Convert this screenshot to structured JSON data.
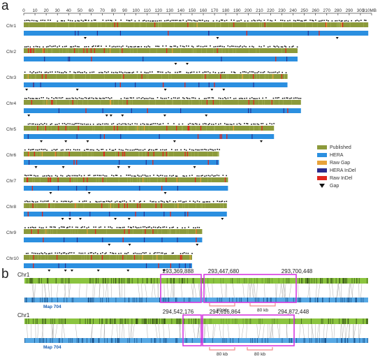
{
  "panel_labels": {
    "a": "a",
    "b": "b"
  },
  "axis": {
    "ticks": [
      "0",
      "10",
      "20",
      "30",
      "40",
      "50",
      "60",
      "70",
      "80",
      "90",
      "100",
      "110",
      "120",
      "130",
      "140",
      "150",
      "160",
      "170",
      "180",
      "190",
      "200",
      "210",
      "220",
      "230",
      "240",
      "250",
      "260",
      "270",
      "280",
      "290",
      "300",
      "310MB"
    ],
    "max_mb": 310
  },
  "colors": {
    "published": "#8c9a3b",
    "hera": "#2b8fe0",
    "raw_gap": "#e8a23a",
    "hera_indel": "#2a2a8c",
    "raw_indel": "#e0261e",
    "gap": "#111111"
  },
  "chromosomes": [
    {
      "name": "Chr1",
      "length_mb": 307
    },
    {
      "name": "Chr2",
      "length_mb": 244
    },
    {
      "name": "Chr3",
      "length_mb": 235
    },
    {
      "name": "Chr4",
      "length_mb": 247
    },
    {
      "name": "Chr5",
      "length_mb": 223
    },
    {
      "name": "Chr6",
      "length_mb": 174
    },
    {
      "name": "Chr7",
      "length_mb": 182
    },
    {
      "name": "Chr8",
      "length_mb": 181
    },
    {
      "name": "Chr9",
      "length_mb": 159
    },
    {
      "name": "Chr10",
      "length_mb": 150
    }
  ],
  "legend": [
    {
      "label": "Published",
      "kind": "swatch",
      "color": "#8c9a3b"
    },
    {
      "label": "HERA",
      "kind": "swatch",
      "color": "#2b8fe0"
    },
    {
      "label": "Raw Gap",
      "kind": "swatch",
      "color": "#e8a23a"
    },
    {
      "label": "HERA InDel",
      "kind": "swatch",
      "color": "#2a2a8c"
    },
    {
      "label": "Raw InDel",
      "kind": "swatch",
      "color": "#e0261e"
    },
    {
      "label": "Gap",
      "kind": "triangle",
      "color": "#111111"
    }
  ],
  "detail_views": [
    {
      "chr_label": "Chr1",
      "map_label": "Map 704",
      "positions": [
        "293,369,888",
        "293,447,680",
        "293,700,448"
      ],
      "spans": [
        "80 kb",
        "80 kb"
      ]
    },
    {
      "chr_label": "Chr1",
      "map_label": "Map 704",
      "positions": [
        "294,542,176",
        "294,616,864",
        "294,872,448"
      ],
      "spans": [
        "80 kb",
        "80 kb"
      ]
    }
  ]
}
